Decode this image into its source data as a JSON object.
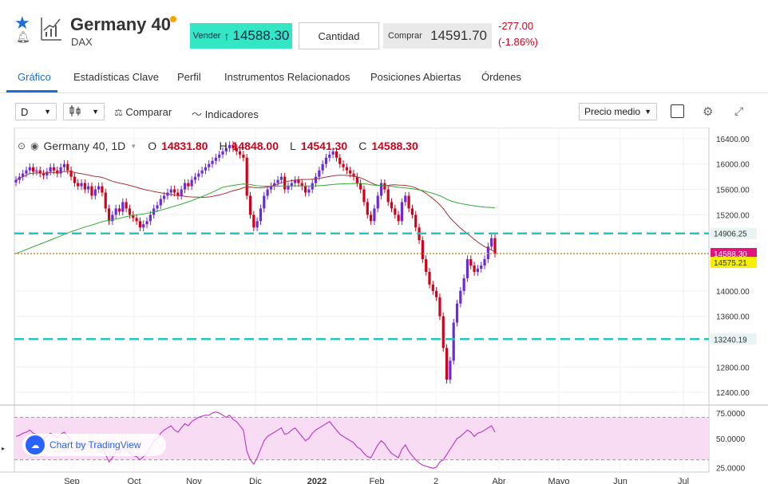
{
  "header": {
    "title": "Germany 40",
    "subtitle": "DAX",
    "sell_label": "Vender",
    "sell_price": "14588.30",
    "quantity_label": "Cantidad",
    "buy_label": "Comprar",
    "buy_price": "14591.70",
    "change_abs": "-277.00",
    "change_pct": "(-1.86%)"
  },
  "tabs": [
    {
      "label": "Gráfico",
      "active": true
    },
    {
      "label": "Estadísticas Clave"
    },
    {
      "label": "Perfil"
    },
    {
      "label": "Instrumentos Relacionados"
    },
    {
      "label": "Posiciones Abiertas"
    },
    {
      "label": "Órdenes"
    }
  ],
  "toolbar": {
    "interval": "D",
    "compare": "Comparar",
    "indicators": "Indicadores",
    "price_mode": "Precio medio"
  },
  "legend": {
    "symbol": "Germany 40, 1D",
    "o_label": "O",
    "o_value": "14831.80",
    "h_label": "H",
    "h_value": "14848.00",
    "l_label": "L",
    "l_value": "14541.30",
    "c_label": "C",
    "c_value": "14588.30"
  },
  "badge": "Chart by TradingView",
  "colors": {
    "accent": "#1a6fd6",
    "sell": "#33e6c4",
    "negative": "#d0021b",
    "up_candle": "#6a2bd8",
    "down_candle": "#d0021b",
    "dashed_line": "#27c4c4",
    "rsi_line": "#c040c8",
    "rsi_fill": "#f7dcf3"
  },
  "chart_data": {
    "type": "candlestick",
    "price_ticks": [
      "16400.00",
      "16000.00",
      "15600.00",
      "15200.00",
      "14000.00",
      "13600.00",
      "12800.00",
      "12400.00"
    ],
    "price_labels": [
      {
        "value": "14906.25",
        "kind": "dashed-level"
      },
      {
        "value": "14588.30",
        "kind": "last-price"
      },
      {
        "value": "14575.21",
        "kind": "ma-level"
      },
      {
        "value": "13240.19",
        "kind": "dashed-level"
      }
    ],
    "ylim": [
      12200,
      16550
    ],
    "x_labels": [
      "Sep",
      "Oct",
      "Nov",
      "Dic",
      "2022",
      "Feb",
      "2",
      "Abr",
      "Mayo",
      "Jun",
      "Jul"
    ],
    "closes": [
      15750,
      15800,
      15850,
      15900,
      15950,
      15880,
      15900,
      15850,
      15820,
      15880,
      15950,
      15900,
      15850,
      15950,
      16000,
      15900,
      15800,
      15700,
      15650,
      15700,
      15600,
      15650,
      15500,
      15600,
      15650,
      15550,
      15300,
      15100,
      15200,
      15300,
      15250,
      15400,
      15300,
      15200,
      15150,
      15100,
      15000,
      15050,
      15100,
      15200,
      15300,
      15350,
      15450,
      15500,
      15550,
      15600,
      15550,
      15500,
      15600,
      15700,
      15650,
      15750,
      15800,
      15850,
      15900,
      15950,
      16000,
      16050,
      16100,
      16150,
      16200,
      16250,
      16300,
      16250,
      16200,
      16150,
      16100,
      15500,
      15200,
      15000,
      15100,
      15300,
      15500,
      15600,
      15650,
      15700,
      15750,
      15800,
      15600,
      15650,
      15700,
      15750,
      15700,
      15650,
      15550,
      15600,
      15700,
      15800,
      15900,
      16000,
      16100,
      16150,
      16200,
      16100,
      16000,
      15950,
      15900,
      15850,
      15800,
      15700,
      15600,
      15400,
      15200,
      15100,
      15300,
      15500,
      15700,
      15600,
      15400,
      15300,
      15200,
      15100,
      15400,
      15500,
      15300,
      15200,
      15000,
      14800,
      14500,
      14300,
      14100,
      14000,
      13900,
      13600,
      13100,
      12600,
      12900,
      13500,
      13800,
      14000,
      14200,
      14500,
      14400,
      14300,
      14350,
      14400,
      14500,
      14700,
      14832,
      14588
    ],
    "ma_slow_start": 14590,
    "ma_fast_start": 15200,
    "rsi": {
      "ticks": [
        "75.0000",
        "50.0000",
        "25.0000"
      ],
      "ylim": [
        20,
        80
      ],
      "upper": 70,
      "lower": 30,
      "values": [
        52,
        53,
        55,
        56,
        58,
        55,
        54,
        52,
        50,
        52,
        55,
        53,
        51,
        54,
        56,
        52,
        48,
        45,
        43,
        46,
        44,
        45,
        40,
        45,
        48,
        42,
        35,
        28,
        32,
        38,
        36,
        42,
        40,
        36,
        34,
        33,
        30,
        33,
        36,
        42,
        48,
        50,
        55,
        58,
        60,
        62,
        58,
        56,
        60,
        64,
        62,
        66,
        68,
        70,
        71,
        72,
        72,
        74,
        75,
        74,
        72,
        70,
        72,
        68,
        66,
        62,
        58,
        38,
        30,
        26,
        32,
        40,
        48,
        52,
        54,
        56,
        58,
        60,
        54,
        55,
        58,
        60,
        56,
        52,
        48,
        50,
        55,
        58,
        60,
        62,
        64,
        66,
        62,
        58,
        54,
        52,
        50,
        48,
        46,
        42,
        40,
        36,
        33,
        32,
        38,
        44,
        48,
        45,
        40,
        36,
        34,
        32,
        40,
        44,
        38,
        34,
        30,
        27,
        25,
        24,
        23,
        22,
        23,
        28,
        30,
        35,
        40,
        45,
        50,
        52,
        55,
        58,
        56,
        52,
        55,
        56,
        58,
        60,
        62,
        56
      ]
    }
  }
}
